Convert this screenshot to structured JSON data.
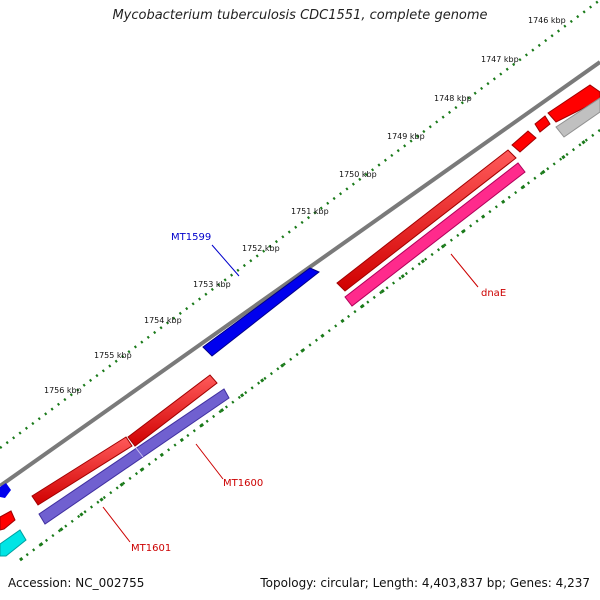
{
  "title": "Mycobacterium tuberculosis CDC1551, complete genome",
  "footer": {
    "accession": "Accession: NC_002755",
    "summary": "Topology: circular; Length: 4,403,837 bp; Genes: 4,237"
  },
  "scale_labels": [
    "1746 kbp",
    "1747 kbp",
    "1748 kbp",
    "1749 kbp",
    "1750 kbp",
    "1751 kbp",
    "1752 kbp",
    "1753 kbp",
    "1754 kbp",
    "1755 kbp",
    "1756 kbp"
  ],
  "gene_labels": [
    {
      "name": "MT1599",
      "color": "#0000cc"
    },
    {
      "name": "dnaE",
      "color": "#cc0000"
    },
    {
      "name": "MT1600",
      "color": "#cc0000"
    },
    {
      "name": "MT1601",
      "color": "#cc0000"
    }
  ],
  "colors": {
    "backbone": "#808080",
    "tick": "#1a7a1a",
    "gene_red": "#ff0000",
    "gene_blue": "#0000ee",
    "gene_pink": "#ff2a8c",
    "gene_purple": "#7060d0",
    "gene_cyan": "#00e5e5",
    "gene_grey": "#c0c0c0"
  }
}
